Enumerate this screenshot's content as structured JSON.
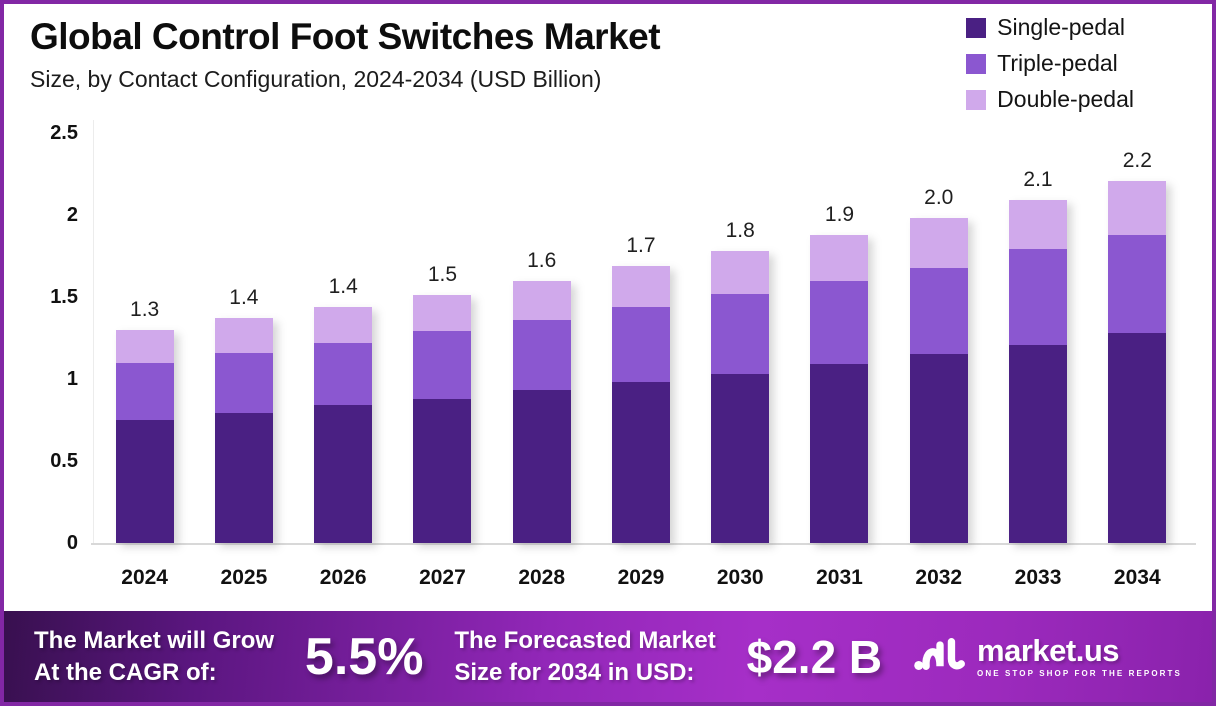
{
  "header": {
    "title": "Global Control Foot Switches Market",
    "subtitle": "Size, by Contact Configuration, 2024-2034 (USD Billion)"
  },
  "legend": [
    {
      "label": "Single-pedal",
      "color": "#4a2083"
    },
    {
      "label": "Triple-pedal",
      "color": "#8b57d0"
    },
    {
      "label": "Double-pedal",
      "color": "#d0a9eb"
    }
  ],
  "chart_data": {
    "type": "bar",
    "stacked": true,
    "title": "Global Control Foot Switches Market",
    "subtitle": "Size, by Contact Configuration, 2024-2034 (USD Billion)",
    "xlabel": "",
    "ylabel": "USD Billion",
    "ylim": [
      0,
      2.5
    ],
    "grid": false,
    "legend_position": "top-right",
    "categories": [
      "2024",
      "2025",
      "2026",
      "2027",
      "2028",
      "2029",
      "2030",
      "2031",
      "2032",
      "2033",
      "2034"
    ],
    "series": [
      {
        "name": "Single-pedal",
        "color": "#4a2083",
        "values": [
          0.75,
          0.79,
          0.84,
          0.88,
          0.93,
          0.98,
          1.03,
          1.09,
          1.15,
          1.21,
          1.28
        ]
      },
      {
        "name": "Triple-pedal",
        "color": "#8b57d0",
        "values": [
          0.35,
          0.37,
          0.38,
          0.41,
          0.43,
          0.46,
          0.49,
          0.51,
          0.53,
          0.58,
          0.6
        ]
      },
      {
        "name": "Double-pedal",
        "color": "#d0a9eb",
        "values": [
          0.2,
          0.21,
          0.22,
          0.22,
          0.24,
          0.25,
          0.26,
          0.28,
          0.3,
          0.3,
          0.33
        ]
      }
    ],
    "totals_labels": [
      "1.3",
      "1.4",
      "1.4",
      "1.5",
      "1.6",
      "1.7",
      "1.8",
      "1.9",
      "2.0",
      "2.1",
      "2.2"
    ],
    "y_ticks": [
      {
        "label": "0",
        "value": 0
      },
      {
        "label": "0.5",
        "value": 0.5
      },
      {
        "label": "1",
        "value": 1
      },
      {
        "label": "1.5",
        "value": 1.5
      },
      {
        "label": "2",
        "value": 2
      },
      {
        "label": "2.5",
        "value": 2.5
      }
    ]
  },
  "footer": {
    "growth_label_line1": "The Market will Grow",
    "growth_label_line2": "At the CAGR of:",
    "cagr_value": "5.5%",
    "forecast_label_line1": "The Forecasted Market",
    "forecast_label_line2": "Size for 2034 in USD:",
    "forecast_value": "$2.2 B",
    "brand_name": "market.us",
    "brand_tagline": "ONE STOP SHOP FOR THE REPORTS",
    "brand_icon": "marketus-squiggle-icon"
  },
  "colors": {
    "border": "#8227a5",
    "background": "#ffffff",
    "banner_gradient_start": "#38104f",
    "banner_gradient_mid": "#a62fc8",
    "banner_gradient_end": "#8a22ac"
  }
}
